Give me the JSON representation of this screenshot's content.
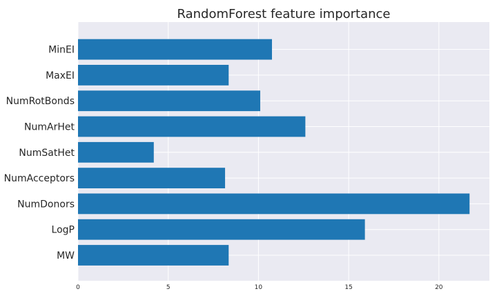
{
  "chart_data": {
    "type": "bar",
    "orientation": "horizontal",
    "title": "RandomForest feature importance",
    "xlabel": "",
    "ylabel": "",
    "categories": [
      "MW",
      "LogP",
      "NumDonors",
      "NumAcceptors",
      "NumSatHet",
      "NumArHet",
      "NumRotBonds",
      "MaxEI",
      "MinEI"
    ],
    "values": [
      8.35,
      15.9,
      21.7,
      8.15,
      4.2,
      12.6,
      10.1,
      8.35,
      10.75
    ],
    "xlim": [
      0,
      22.8
    ],
    "xticks": [
      0,
      5,
      10,
      15,
      20
    ],
    "bar_color": "#1f77b4",
    "background": "#eaeaf2",
    "grid": true
  }
}
